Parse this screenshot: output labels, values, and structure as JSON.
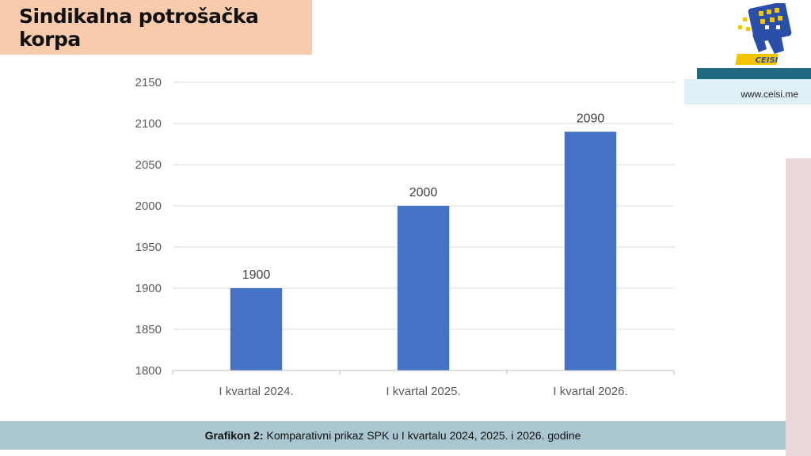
{
  "header": {
    "title": "Sindikalna potrošačka korpa"
  },
  "brand": {
    "logo_text": "CEISI",
    "website": "www.ceisi.me"
  },
  "caption": {
    "label": "Grafikon 2:",
    "text": "Komparativni prikaz SPK u I kvartalu 2024, 2025. i 2026. godine"
  },
  "colors": {
    "bar": "#4472c4",
    "title_bg": "#f8cbad",
    "caption_bg": "#a9c6d1",
    "brand_bar": "#1f6a80"
  },
  "chart_data": {
    "type": "bar",
    "categories": [
      "I kvartal 2024.",
      "I kvartal 2025.",
      "I kvartal 2026."
    ],
    "values": [
      1900,
      2000,
      2090
    ],
    "data_labels": [
      "1900",
      "2000",
      "2090"
    ],
    "title": "",
    "xlabel": "",
    "ylabel": "",
    "ylim": [
      1800,
      2150
    ],
    "yticks": [
      1800,
      1850,
      1900,
      1950,
      2000,
      2050,
      2100,
      2150
    ],
    "grid": true,
    "legend": "none"
  }
}
